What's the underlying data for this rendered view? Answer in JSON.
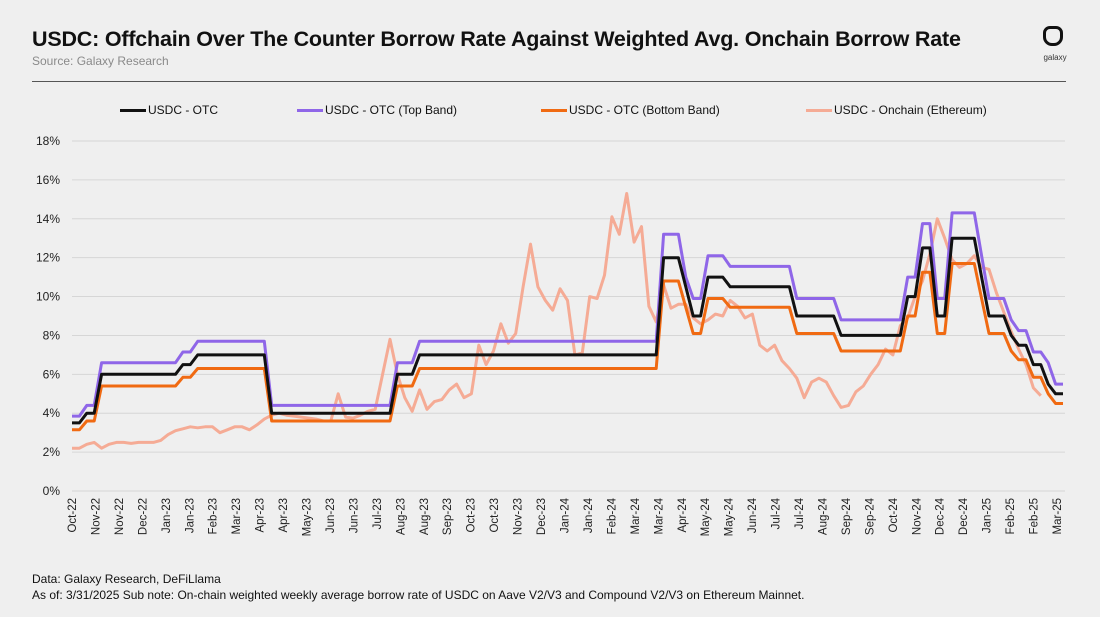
{
  "header": {
    "title": "USDC: Offchain Over The Counter Borrow Rate Against Weighted Avg. Onchain Borrow Rate",
    "subtitle": "Source: Galaxy Research",
    "logo_icon": "galaxy-logo-icon",
    "logo_text": "galaxy"
  },
  "footer": {
    "line1": "Data: Galaxy Research, DeFiLlama",
    "line2": "As of: 3/31/2025   Sub note: On-chain weighted weekly average borrow rate of USDC on Aave V2/V3 and Compound V2/V3 on Ethereum Mainnet."
  },
  "colors": {
    "otc": "#111111",
    "top_band": "#8f66e8",
    "bottom_band": "#f06a12",
    "onchain": "#f5ab95",
    "grid": "#d6d6d6"
  },
  "chart_data": {
    "type": "line",
    "title": "USDC: Offchain Over The Counter Borrow Rate Against Weighted Avg. Onchain Borrow Rate",
    "xlabel": "",
    "ylabel": "",
    "ylim": [
      0,
      18
    ],
    "yticks": [
      "0%",
      "2%",
      "4%",
      "6%",
      "8%",
      "10%",
      "12%",
      "14%",
      "16%",
      "18%"
    ],
    "grid": true,
    "legend_position": "top",
    "x_tick_labels": [
      "Oct-22",
      "Nov-22",
      "Nov-22",
      "Dec-22",
      "Jan-23",
      "Jan-23",
      "Feb-23",
      "Mar-23",
      "Apr-23",
      "Apr-23",
      "May-23",
      "Jun-23",
      "Jun-23",
      "Jul-23",
      "Aug-23",
      "Aug-23",
      "Sep-23",
      "Oct-23",
      "Oct-23",
      "Nov-23",
      "Dec-23",
      "Jan-24",
      "Jan-24",
      "Feb-24",
      "Mar-24",
      "Mar-24",
      "Apr-24",
      "May-24",
      "May-24",
      "Jun-24",
      "Jul-24",
      "Jul-24",
      "Aug-24",
      "Sep-24",
      "Sep-24",
      "Oct-24",
      "Nov-24",
      "Dec-24",
      "Dec-24",
      "Jan-25",
      "Feb-25",
      "Feb-25",
      "Mar-25"
    ],
    "x_unit": "weekly observations",
    "series": [
      {
        "name": "USDC - OTC",
        "key": "otc",
        "values": [
          3.5,
          3.5,
          4.0,
          4.0,
          6.0,
          6.0,
          6.0,
          6.0,
          6.0,
          6.0,
          6.0,
          6.0,
          6.0,
          6.0,
          6.0,
          6.5,
          6.5,
          7.0,
          7.0,
          7.0,
          7.0,
          7.0,
          7.0,
          7.0,
          7.0,
          7.0,
          7.0,
          4.0,
          4.0,
          4.0,
          4.0,
          4.0,
          4.0,
          4.0,
          4.0,
          4.0,
          4.0,
          4.0,
          4.0,
          4.0,
          4.0,
          4.0,
          4.0,
          4.0,
          6.0,
          6.0,
          6.0,
          7.0,
          7.0,
          7.0,
          7.0,
          7.0,
          7.0,
          7.0,
          7.0,
          7.0,
          7.0,
          7.0,
          7.0,
          7.0,
          7.0,
          7.0,
          7.0,
          7.0,
          7.0,
          7.0,
          7.0,
          7.0,
          7.0,
          7.0,
          7.0,
          7.0,
          7.0,
          7.0,
          7.0,
          7.0,
          7.0,
          7.0,
          7.0,
          7.0,
          12.0,
          12.0,
          12.0,
          10.5,
          9.0,
          9.0,
          11.0,
          11.0,
          11.0,
          10.5,
          10.5,
          10.5,
          10.5,
          10.5,
          10.5,
          10.5,
          10.5,
          10.5,
          9.0,
          9.0,
          9.0,
          9.0,
          9.0,
          9.0,
          8.0,
          8.0,
          8.0,
          8.0,
          8.0,
          8.0,
          8.0,
          8.0,
          8.0,
          10.0,
          10.0,
          12.5,
          12.5,
          9.0,
          9.0,
          13.0,
          13.0,
          13.0,
          13.0,
          11.0,
          9.0,
          9.0,
          9.0,
          8.0,
          7.5,
          7.5,
          6.5,
          6.5,
          5.5,
          5.0,
          5.0
        ]
      },
      {
        "name": "USDC - OTC (Top Band)",
        "key": "top_band",
        "values": [
          3.85,
          3.85,
          4.4,
          4.4,
          6.6,
          6.6,
          6.6,
          6.6,
          6.6,
          6.6,
          6.6,
          6.6,
          6.6,
          6.6,
          6.6,
          7.15,
          7.15,
          7.7,
          7.7,
          7.7,
          7.7,
          7.7,
          7.7,
          7.7,
          7.7,
          7.7,
          7.7,
          4.4,
          4.4,
          4.4,
          4.4,
          4.4,
          4.4,
          4.4,
          4.4,
          4.4,
          4.4,
          4.4,
          4.4,
          4.4,
          4.4,
          4.4,
          4.4,
          4.4,
          6.6,
          6.6,
          6.6,
          7.7,
          7.7,
          7.7,
          7.7,
          7.7,
          7.7,
          7.7,
          7.7,
          7.7,
          7.7,
          7.7,
          7.7,
          7.7,
          7.7,
          7.7,
          7.7,
          7.7,
          7.7,
          7.7,
          7.7,
          7.7,
          7.7,
          7.7,
          7.7,
          7.7,
          7.7,
          7.7,
          7.7,
          7.7,
          7.7,
          7.7,
          7.7,
          7.7,
          13.2,
          13.2,
          13.2,
          11.0,
          9.9,
          9.9,
          12.1,
          12.1,
          12.1,
          11.55,
          11.55,
          11.55,
          11.55,
          11.55,
          11.55,
          11.55,
          11.55,
          11.55,
          9.9,
          9.9,
          9.9,
          9.9,
          9.9,
          9.9,
          8.8,
          8.8,
          8.8,
          8.8,
          8.8,
          8.8,
          8.8,
          8.8,
          8.8,
          11.0,
          11.0,
          13.75,
          13.75,
          9.9,
          9.9,
          14.3,
          14.3,
          14.3,
          14.3,
          12.1,
          9.9,
          9.9,
          9.9,
          8.8,
          8.25,
          8.25,
          7.15,
          7.15,
          6.6,
          5.5,
          5.5
        ]
      },
      {
        "name": "USDC - OTC (Bottom Band)",
        "key": "bottom_band",
        "values": [
          3.15,
          3.15,
          3.6,
          3.6,
          5.4,
          5.4,
          5.4,
          5.4,
          5.4,
          5.4,
          5.4,
          5.4,
          5.4,
          5.4,
          5.4,
          5.85,
          5.85,
          6.3,
          6.3,
          6.3,
          6.3,
          6.3,
          6.3,
          6.3,
          6.3,
          6.3,
          6.3,
          3.6,
          3.6,
          3.6,
          3.6,
          3.6,
          3.6,
          3.6,
          3.6,
          3.6,
          3.6,
          3.6,
          3.6,
          3.6,
          3.6,
          3.6,
          3.6,
          3.6,
          5.4,
          5.4,
          5.4,
          6.3,
          6.3,
          6.3,
          6.3,
          6.3,
          6.3,
          6.3,
          6.3,
          6.3,
          6.3,
          6.3,
          6.3,
          6.3,
          6.3,
          6.3,
          6.3,
          6.3,
          6.3,
          6.3,
          6.3,
          6.3,
          6.3,
          6.3,
          6.3,
          6.3,
          6.3,
          6.3,
          6.3,
          6.3,
          6.3,
          6.3,
          6.3,
          6.3,
          10.8,
          10.8,
          10.8,
          9.45,
          8.1,
          8.1,
          9.9,
          9.9,
          9.9,
          9.45,
          9.45,
          9.45,
          9.45,
          9.45,
          9.45,
          9.45,
          9.45,
          9.45,
          8.1,
          8.1,
          8.1,
          8.1,
          8.1,
          8.1,
          7.2,
          7.2,
          7.2,
          7.2,
          7.2,
          7.2,
          7.2,
          7.2,
          7.2,
          9.0,
          9.0,
          11.25,
          11.25,
          8.1,
          8.1,
          11.7,
          11.7,
          11.7,
          11.7,
          9.9,
          8.1,
          8.1,
          8.1,
          7.2,
          6.75,
          6.75,
          5.85,
          5.85,
          5.0,
          4.5,
          4.5
        ]
      },
      {
        "name": "USDC - Onchain (Ethereum)",
        "key": "onchain",
        "values": [
          2.2,
          2.2,
          2.4,
          2.5,
          2.2,
          2.4,
          2.5,
          2.5,
          2.45,
          2.5,
          2.5,
          2.5,
          2.6,
          2.9,
          3.1,
          3.2,
          3.3,
          3.25,
          3.3,
          3.3,
          3.0,
          3.15,
          3.3,
          3.3,
          3.15,
          3.4,
          3.7,
          3.9,
          4.0,
          3.9,
          3.85,
          3.8,
          3.75,
          3.7,
          3.6,
          3.6,
          5.0,
          3.8,
          3.75,
          3.9,
          4.1,
          4.2,
          6.0,
          7.8,
          6.0,
          4.8,
          4.1,
          5.2,
          4.2,
          4.6,
          4.7,
          5.2,
          5.5,
          4.8,
          5.0,
          7.5,
          6.5,
          7.2,
          8.6,
          7.6,
          8.1,
          10.5,
          12.7,
          10.5,
          9.8,
          9.3,
          10.4,
          9.8,
          7.0,
          7.1,
          10.0,
          9.9,
          11.1,
          14.1,
          13.2,
          15.3,
          12.8,
          13.6,
          9.5,
          8.7,
          10.6,
          9.4,
          9.6,
          9.6,
          8.9,
          8.6,
          8.8,
          9.1,
          9.0,
          9.8,
          9.5,
          8.9,
          9.1,
          7.5,
          7.2,
          7.5,
          6.7,
          6.3,
          5.8,
          4.8,
          5.6,
          5.8,
          5.6,
          4.9,
          4.3,
          4.4,
          5.1,
          5.4,
          6.0,
          6.5,
          7.3,
          7.0,
          8.5,
          8.9,
          10.0,
          10.8,
          12.2,
          14.0,
          13.0,
          11.9,
          11.5,
          11.7,
          12.1,
          11.5,
          11.4,
          10.2,
          9.2,
          8.2,
          7.3,
          6.5,
          5.3,
          4.9
        ]
      }
    ]
  }
}
